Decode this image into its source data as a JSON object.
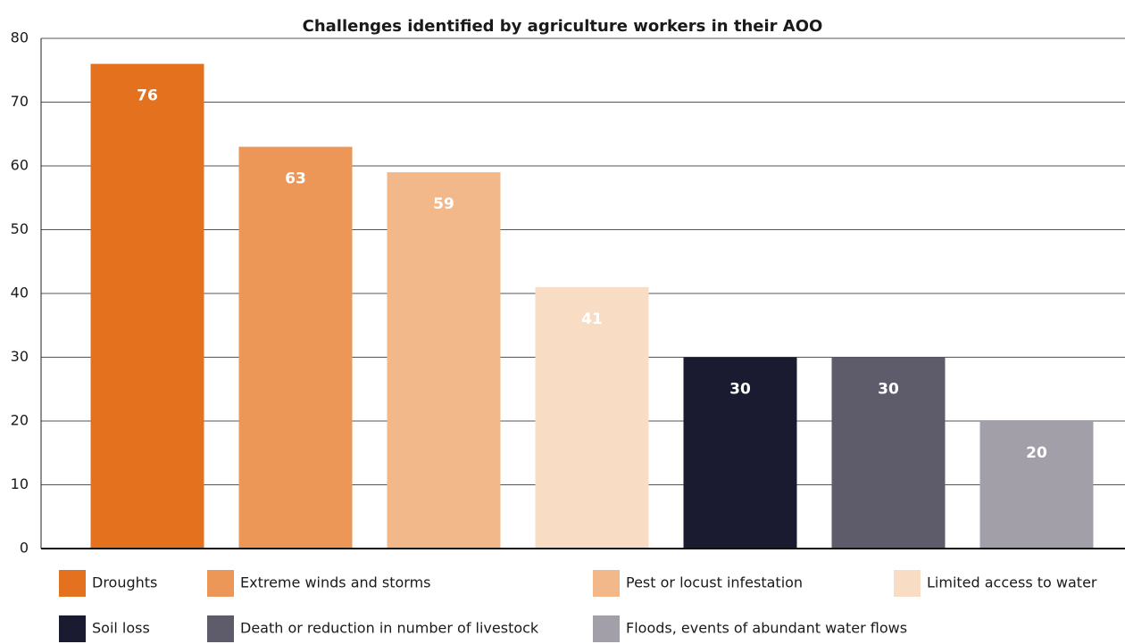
{
  "chart_data": {
    "type": "bar",
    "title": "Challenges identified by agriculture workers in their AOO",
    "categories": [
      "Droughts",
      "Extreme winds and storms",
      "Pest or locust infestation",
      "Limited access to water",
      "Soil loss",
      "Death or reduction in number of livestock",
      "Floods, events of abundant water flows"
    ],
    "values": [
      76,
      63,
      59,
      41,
      30,
      30,
      20
    ],
    "colors": [
      "#e4711e",
      "#ec9657",
      "#f2b88a",
      "#f8dcc4",
      "#1a1b30",
      "#5e5c6b",
      "#a29fa9"
    ],
    "ylim": [
      0,
      80
    ],
    "yticks": [
      0,
      10,
      20,
      30,
      40,
      50,
      60,
      70,
      80
    ],
    "grid": true
  }
}
